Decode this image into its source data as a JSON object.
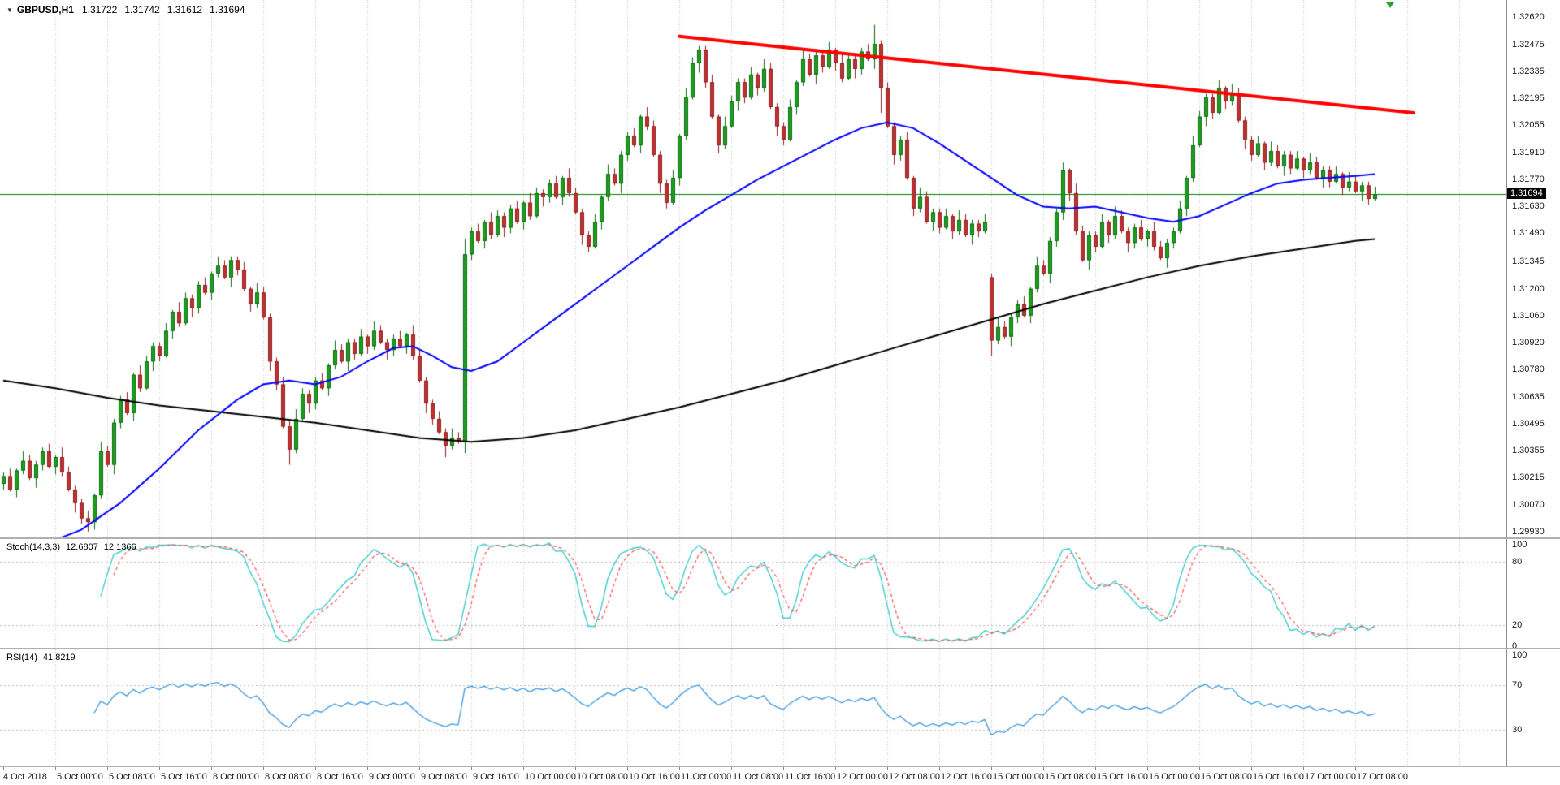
{
  "header": {
    "dropdown_icon": "▼",
    "symbol": "GBPUSD,H1",
    "ohlc": [
      "1.31722",
      "1.31742",
      "1.31612",
      "1.31694"
    ]
  },
  "price_axis": {
    "labels": [
      "1.32620",
      "1.32475",
      "1.32335",
      "1.32195",
      "1.32055",
      "1.31910",
      "1.31770",
      "1.31630",
      "1.31490",
      "1.31345",
      "1.31200",
      "1.31060",
      "1.30920",
      "1.30780",
      "1.30635",
      "1.30495",
      "1.30355",
      "1.30215",
      "1.30070",
      "1.29930"
    ],
    "current_price": "1.31694",
    "current_price_value": 1.31694
  },
  "time_axis": {
    "labels": [
      "4 Oct 2018",
      "5 Oct 00:00",
      "5 Oct 08:00",
      "5 Oct 16:00",
      "8 Oct 00:00",
      "8 Oct 08:00",
      "8 Oct 16:00",
      "9 Oct 00:00",
      "9 Oct 08:00",
      "9 Oct 16:00",
      "10 Oct 00:00",
      "10 Oct 08:00",
      "10 Oct 16:00",
      "11 Oct 00:00",
      "11 Oct 08:00",
      "11 Oct 16:00",
      "12 Oct 00:00",
      "12 Oct 08:00",
      "12 Oct 16:00",
      "15 Oct 00:00",
      "15 Oct 08:00",
      "15 Oct 16:00",
      "16 Oct 00:00",
      "16 Oct 08:00",
      "16 Oct 16:00",
      "17 Oct 00:00",
      "17 Oct 08:00"
    ],
    "bars": [
      0,
      8,
      16,
      24,
      32,
      40,
      48,
      56,
      64,
      72,
      80,
      88,
      96,
      104,
      112,
      120,
      128,
      136,
      144,
      152,
      160,
      168,
      176,
      184,
      192,
      200,
      208
    ],
    "future_grid_bars": [
      216,
      224
    ]
  },
  "panels": {
    "stoch": {
      "title": "Stoch(14,3,3)",
      "k_value": "12.6807",
      "d_value": "12.1366",
      "tick_values": [
        100,
        80,
        20,
        0
      ],
      "level_lines": [
        80,
        20
      ]
    },
    "rsi": {
      "title": "RSI(14)",
      "value": "41.8219",
      "tick_values": [
        100,
        70,
        30
      ],
      "level_lines": [
        70,
        30
      ]
    }
  },
  "colors": {
    "background": "#ffffff",
    "grid": "#c8c8c8",
    "axis_line": "#8c8c8c",
    "separator": "#b0b0b0",
    "text": "#1a1a1a",
    "bull": "#1e9e1e",
    "bull_border": "#0b6b10",
    "bear": "#c03232",
    "bear_border": "#8f2020",
    "ma_fast": "#0000ff",
    "ma_slow": "#000000",
    "trendline": "#ff0000",
    "current_price_line": "#008000",
    "stoch_k": "#3fcccc",
    "stoch_d": "#ff4d4d",
    "rsi_line": "#4a9fe0",
    "level_line": "#bdbdbd",
    "tag_bg": "#000000",
    "tag_text": "#ffffff",
    "shift_marker": "#2e9e2e"
  },
  "chart_data": {
    "type": "candlestick",
    "symbol": "GBPUSD",
    "timeframe": "H1",
    "y_axis": {
      "min": 1.299,
      "max": 1.3271
    },
    "bars_total_slots": 232,
    "first_open": 1.3018,
    "closes": [
      1.3022,
      1.3015,
      1.3025,
      1.303,
      1.3021,
      1.3028,
      1.3035,
      1.3027,
      1.3032,
      1.3024,
      1.3015,
      1.3008,
      1.3,
      1.2998,
      1.3012,
      1.3035,
      1.3028,
      1.305,
      1.3062,
      1.3055,
      1.3075,
      1.3068,
      1.3082,
      1.309,
      1.3085,
      1.3098,
      1.3108,
      1.3102,
      1.3115,
      1.311,
      1.3122,
      1.3118,
      1.3128,
      1.3132,
      1.3126,
      1.3135,
      1.313,
      1.312,
      1.3112,
      1.3118,
      1.3105,
      1.3082,
      1.307,
      1.3048,
      1.3036,
      1.3052,
      1.3065,
      1.306,
      1.3072,
      1.3068,
      1.308,
      1.3088,
      1.3082,
      1.3092,
      1.3086,
      1.3095,
      1.309,
      1.3098,
      1.3092,
      1.3088,
      1.3094,
      1.309,
      1.3096,
      1.3085,
      1.3072,
      1.306,
      1.3052,
      1.3045,
      1.3038,
      1.3042,
      1.304,
      1.3138,
      1.315,
      1.3145,
      1.3155,
      1.3148,
      1.3158,
      1.3152,
      1.3162,
      1.3155,
      1.3165,
      1.3158,
      1.317,
      1.3168,
      1.3175,
      1.3168,
      1.3178,
      1.317,
      1.316,
      1.3148,
      1.3142,
      1.3155,
      1.3168,
      1.318,
      1.3175,
      1.319,
      1.32,
      1.3195,
      1.321,
      1.3205,
      1.319,
      1.3175,
      1.3165,
      1.3178,
      1.32,
      1.322,
      1.3238,
      1.3245,
      1.3228,
      1.321,
      1.3195,
      1.3205,
      1.3218,
      1.3228,
      1.322,
      1.3232,
      1.3225,
      1.3235,
      1.3215,
      1.3205,
      1.3198,
      1.3215,
      1.3228,
      1.324,
      1.3232,
      1.3242,
      1.3236,
      1.3245,
      1.3238,
      1.323,
      1.324,
      1.3235,
      1.3244,
      1.324,
      1.3248,
      1.3225,
      1.3205,
      1.319,
      1.3198,
      1.3178,
      1.3162,
      1.3168,
      1.3155,
      1.316,
      1.3152,
      1.3158,
      1.315,
      1.3156,
      1.3148,
      1.3154,
      1.315,
      1.3155,
      1.3093,
      1.31,
      1.3095,
      1.3105,
      1.3112,
      1.3106,
      1.312,
      1.3132,
      1.3128,
      1.3145,
      1.316,
      1.3182,
      1.317,
      1.315,
      1.3135,
      1.3148,
      1.3142,
      1.3155,
      1.3148,
      1.3158,
      1.315,
      1.3144,
      1.3152,
      1.3146,
      1.315,
      1.3142,
      1.3136,
      1.3144,
      1.315,
      1.3162,
      1.3178,
      1.3195,
      1.321,
      1.322,
      1.3212,
      1.3225,
      1.3218,
      1.3222,
      1.3208,
      1.3198,
      1.319,
      1.3196,
      1.3186,
      1.3192,
      1.3184,
      1.319,
      1.3183,
      1.3188,
      1.3182,
      1.3186,
      1.3178,
      1.3182,
      1.3176,
      1.318,
      1.3173,
      1.3176,
      1.3171,
      1.3174,
      1.3167,
      1.31694
    ],
    "wick_high_cycle": [
      0.0002,
      0.0004,
      0.0001,
      0.0005,
      0.0003,
      0.0002
    ],
    "wick_low_cycle": [
      0.0003,
      0.0001,
      0.0004,
      0.0002,
      0.0001,
      0.0005
    ],
    "special_candles": {
      "13": [
        1.3,
        1.3004,
        1.2993,
        1.2998
      ],
      "44": [
        1.3048,
        1.3052,
        1.3028,
        1.3036
      ],
      "68": [
        1.3045,
        1.3047,
        1.3032,
        1.3038
      ],
      "71": [
        1.304,
        1.3146,
        1.3034,
        1.3138
      ],
      "134": [
        1.324,
        1.3258,
        1.3235,
        1.3248
      ],
      "135": [
        1.3248,
        1.325,
        1.3212,
        1.3225
      ],
      "152": [
        1.3126,
        1.3128,
        1.3085,
        1.3093
      ],
      "163": [
        1.316,
        1.3186,
        1.3156,
        1.3182
      ]
    },
    "overlays": {
      "ma_fast": {
        "name": "blue-moving-average",
        "points": [
          [
            0,
            1.2982
          ],
          [
            6,
            1.2986
          ],
          [
            12,
            1.2994
          ],
          [
            18,
            1.3008
          ],
          [
            24,
            1.3026
          ],
          [
            30,
            1.3046
          ],
          [
            36,
            1.3062
          ],
          [
            40,
            1.307
          ],
          [
            44,
            1.3072
          ],
          [
            48,
            1.307
          ],
          [
            52,
            1.3074
          ],
          [
            56,
            1.3082
          ],
          [
            60,
            1.3089
          ],
          [
            63,
            1.309
          ],
          [
            66,
            1.3085
          ],
          [
            69,
            1.3079
          ],
          [
            72,
            1.3077
          ],
          [
            76,
            1.3082
          ],
          [
            80,
            1.3092
          ],
          [
            84,
            1.3102
          ],
          [
            88,
            1.3112
          ],
          [
            92,
            1.3122
          ],
          [
            96,
            1.3132
          ],
          [
            100,
            1.3142
          ],
          [
            104,
            1.3152
          ],
          [
            108,
            1.3161
          ],
          [
            112,
            1.3169
          ],
          [
            116,
            1.3177
          ],
          [
            120,
            1.3184
          ],
          [
            124,
            1.3191
          ],
          [
            128,
            1.3198
          ],
          [
            132,
            1.3204
          ],
          [
            136,
            1.3207
          ],
          [
            140,
            1.3204
          ],
          [
            144,
            1.3196
          ],
          [
            148,
            1.3187
          ],
          [
            152,
            1.3178
          ],
          [
            156,
            1.3169
          ],
          [
            160,
            1.3163
          ],
          [
            164,
            1.3162
          ],
          [
            168,
            1.3163
          ],
          [
            172,
            1.316
          ],
          [
            176,
            1.3157
          ],
          [
            180,
            1.3155
          ],
          [
            184,
            1.3158
          ],
          [
            188,
            1.3164
          ],
          [
            192,
            1.317
          ],
          [
            196,
            1.3175
          ],
          [
            200,
            1.3177
          ],
          [
            204,
            1.3178
          ],
          [
            208,
            1.3179
          ],
          [
            211,
            1.318
          ]
        ]
      },
      "ma_slow": {
        "name": "black-moving-average",
        "points": [
          [
            0,
            1.3072
          ],
          [
            8,
            1.3068
          ],
          [
            16,
            1.3063
          ],
          [
            24,
            1.3059
          ],
          [
            32,
            1.3056
          ],
          [
            40,
            1.3053
          ],
          [
            48,
            1.305
          ],
          [
            56,
            1.3046
          ],
          [
            64,
            1.3042
          ],
          [
            72,
            1.304
          ],
          [
            80,
            1.3042
          ],
          [
            88,
            1.3046
          ],
          [
            96,
            1.3052
          ],
          [
            104,
            1.3058
          ],
          [
            112,
            1.3065
          ],
          [
            120,
            1.3072
          ],
          [
            128,
            1.308
          ],
          [
            136,
            1.3088
          ],
          [
            144,
            1.3096
          ],
          [
            152,
            1.3104
          ],
          [
            160,
            1.3112
          ],
          [
            168,
            1.3119
          ],
          [
            176,
            1.3126
          ],
          [
            184,
            1.3132
          ],
          [
            192,
            1.3137
          ],
          [
            200,
            1.3141
          ],
          [
            208,
            1.3145
          ],
          [
            211,
            1.3146
          ]
        ]
      },
      "trendline": {
        "name": "descending-resistance-trendline",
        "width": 4,
        "from": [
          104,
          1.3252
        ],
        "to": [
          217,
          1.3212
        ]
      },
      "hline": {
        "name": "current-price-horizontal-line",
        "price": 1.31694
      }
    },
    "indicators": {
      "stoch": {
        "params": [
          14,
          3,
          3
        ]
      },
      "rsi": {
        "period": 14
      }
    }
  }
}
